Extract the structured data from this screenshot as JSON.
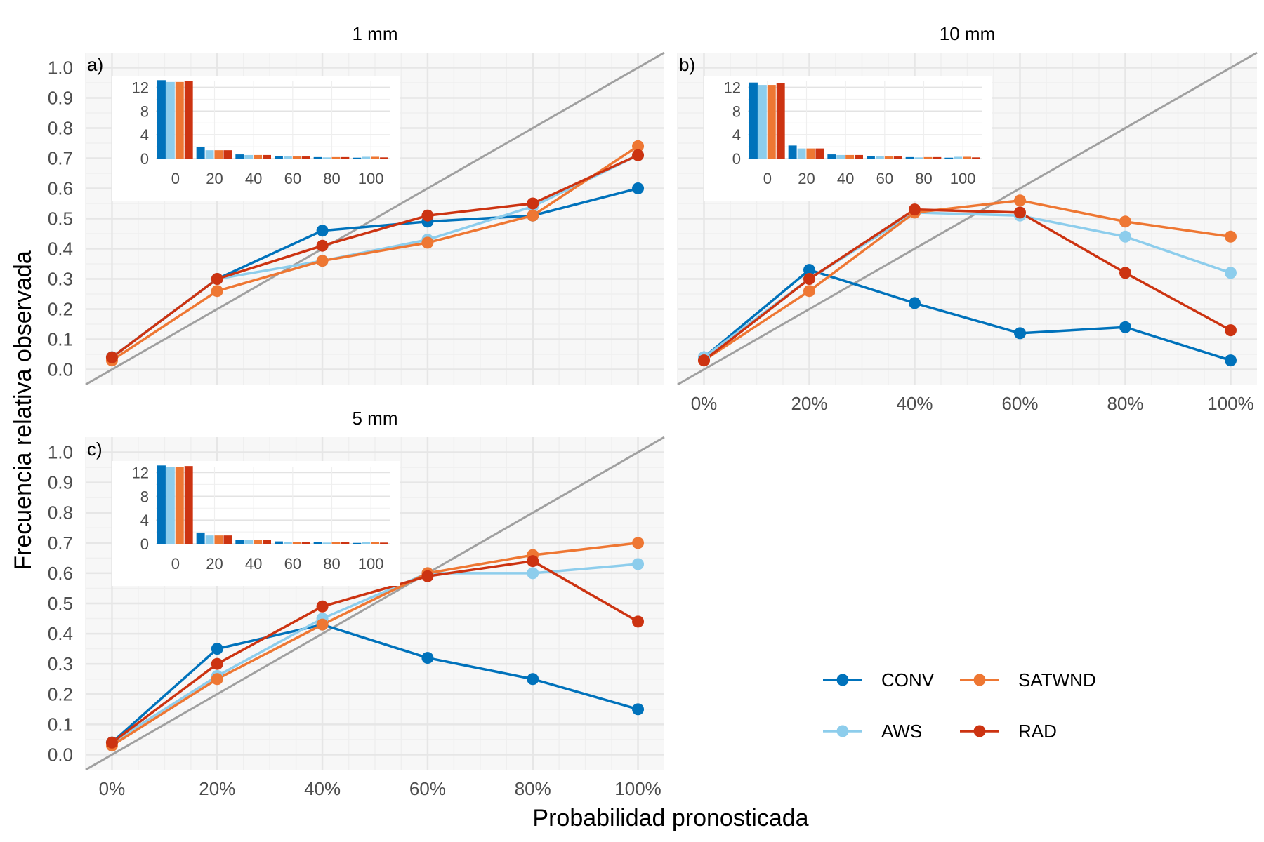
{
  "figure": {
    "ylabel": "Frecuencia relativa observada",
    "xlabel": "Probabilidad pronosticada"
  },
  "colors": {
    "CONV": "#0072BB",
    "AWS": "#8DCDEC",
    "SATWND": "#EE7733",
    "RAD": "#CC3311",
    "diagonal": "#A0A0A0",
    "panel_bg": "#F7F7F7",
    "grid_major": "#E6E6E6",
    "grid_minor": "#EFEFEF"
  },
  "legend": {
    "items": [
      {
        "key": "CONV",
        "label": "CONV"
      },
      {
        "key": "SATWND",
        "label": "SATWND"
      },
      {
        "key": "AWS",
        "label": "AWS"
      },
      {
        "key": "RAD",
        "label": "RAD"
      }
    ]
  },
  "chart_data": [
    {
      "type": "line",
      "title": "1 mm",
      "tag": "a)",
      "x": [
        0,
        0.2,
        0.4,
        0.6,
        0.8,
        1.0
      ],
      "x_tick_labels": [
        "0%",
        "20%",
        "40%",
        "60%",
        "80%",
        "100%"
      ],
      "y_tick_labels": [
        "0.0",
        "0.1",
        "0.2",
        "0.3",
        "0.4",
        "0.5",
        "0.6",
        "0.7",
        "0.8",
        "0.9",
        "1.0"
      ],
      "xlim": [
        -0.05,
        1.05
      ],
      "ylim": [
        -0.05,
        1.05
      ],
      "series": [
        {
          "name": "CONV",
          "values": [
            0.04,
            0.3,
            0.46,
            0.49,
            0.51,
            0.6
          ]
        },
        {
          "name": "AWS",
          "values": [
            0.04,
            0.3,
            0.36,
            0.43,
            0.54,
            0.71
          ]
        },
        {
          "name": "SATWND",
          "values": [
            0.03,
            0.26,
            0.36,
            0.42,
            0.51,
            0.74
          ]
        },
        {
          "name": "RAD",
          "values": [
            0.04,
            0.3,
            0.41,
            0.51,
            0.55,
            0.71
          ]
        }
      ],
      "inset": {
        "type": "bar",
        "x_tick_labels": [
          "0",
          "20",
          "40",
          "60",
          "80",
          "100"
        ],
        "y_tick_labels": [
          "0",
          "4",
          "8",
          "12"
        ],
        "ylim": [
          0,
          13
        ],
        "series": [
          {
            "name": "CONV",
            "values": [
              13.2,
              1.9,
              0.7,
              0.4,
              0.25,
              0.15
            ]
          },
          {
            "name": "AWS",
            "values": [
              12.9,
              1.4,
              0.6,
              0.35,
              0.2,
              0.3
            ]
          },
          {
            "name": "SATWND",
            "values": [
              12.9,
              1.4,
              0.6,
              0.35,
              0.25,
              0.3
            ]
          },
          {
            "name": "RAD",
            "values": [
              13.1,
              1.4,
              0.6,
              0.35,
              0.25,
              0.2
            ]
          }
        ]
      }
    },
    {
      "type": "line",
      "title": "10 mm",
      "tag": "b)",
      "x": [
        0,
        0.2,
        0.4,
        0.6,
        0.8,
        1.0
      ],
      "x_tick_labels": [
        "0%",
        "20%",
        "40%",
        "60%",
        "80%",
        "100%"
      ],
      "y_tick_labels": [],
      "xlim": [
        -0.05,
        1.05
      ],
      "ylim": [
        -0.05,
        1.05
      ],
      "series": [
        {
          "name": "CONV",
          "values": [
            0.04,
            0.33,
            0.22,
            0.12,
            0.14,
            0.03
          ]
        },
        {
          "name": "AWS",
          "values": [
            0.04,
            0.3,
            0.52,
            0.51,
            0.44,
            0.32
          ]
        },
        {
          "name": "SATWND",
          "values": [
            0.03,
            0.26,
            0.52,
            0.56,
            0.49,
            0.44
          ]
        },
        {
          "name": "RAD",
          "values": [
            0.03,
            0.3,
            0.53,
            0.52,
            0.32,
            0.13
          ]
        }
      ],
      "inset": {
        "type": "bar",
        "x_tick_labels": [
          "0",
          "20",
          "40",
          "60",
          "80",
          "100"
        ],
        "y_tick_labels": [
          "0",
          "4",
          "8",
          "12"
        ],
        "ylim": [
          0,
          13
        ],
        "series": [
          {
            "name": "CONV",
            "values": [
              12.8,
              2.2,
              0.7,
              0.4,
              0.25,
              0.15
            ]
          },
          {
            "name": "AWS",
            "values": [
              12.4,
              1.7,
              0.6,
              0.35,
              0.2,
              0.3
            ]
          },
          {
            "name": "SATWND",
            "values": [
              12.4,
              1.7,
              0.6,
              0.35,
              0.25,
              0.3
            ]
          },
          {
            "name": "RAD",
            "values": [
              12.7,
              1.7,
              0.6,
              0.35,
              0.25,
              0.2
            ]
          }
        ]
      }
    },
    {
      "type": "line",
      "title": "5 mm",
      "tag": "c)",
      "x": [
        0,
        0.2,
        0.4,
        0.6,
        0.8,
        1.0
      ],
      "x_tick_labels": [
        "0%",
        "20%",
        "40%",
        "60%",
        "80%",
        "100%"
      ],
      "y_tick_labels": [
        "0.0",
        "0.1",
        "0.2",
        "0.3",
        "0.4",
        "0.5",
        "0.6",
        "0.7",
        "0.8",
        "0.9",
        "1.0"
      ],
      "xlim": [
        -0.05,
        1.05
      ],
      "ylim": [
        -0.05,
        1.05
      ],
      "series": [
        {
          "name": "CONV",
          "values": [
            0.04,
            0.35,
            0.43,
            0.32,
            0.25,
            0.15
          ]
        },
        {
          "name": "AWS",
          "values": [
            0.04,
            0.26,
            0.45,
            0.6,
            0.6,
            0.63
          ]
        },
        {
          "name": "SATWND",
          "values": [
            0.03,
            0.25,
            0.43,
            0.6,
            0.66,
            0.7
          ]
        },
        {
          "name": "RAD",
          "values": [
            0.04,
            0.3,
            0.49,
            0.59,
            0.64,
            0.44
          ]
        }
      ],
      "inset": {
        "type": "bar",
        "x_tick_labels": [
          "0",
          "20",
          "40",
          "60",
          "80",
          "100"
        ],
        "y_tick_labels": [
          "0",
          "4",
          "8",
          "12"
        ],
        "ylim": [
          0,
          13
        ],
        "series": [
          {
            "name": "CONV",
            "values": [
              13.2,
              1.9,
              0.7,
              0.4,
              0.25,
              0.15
            ]
          },
          {
            "name": "AWS",
            "values": [
              12.9,
              1.4,
              0.6,
              0.35,
              0.2,
              0.3
            ]
          },
          {
            "name": "SATWND",
            "values": [
              12.9,
              1.4,
              0.6,
              0.35,
              0.25,
              0.3
            ]
          },
          {
            "name": "RAD",
            "values": [
              13.1,
              1.4,
              0.6,
              0.35,
              0.25,
              0.2
            ]
          }
        ]
      }
    }
  ]
}
